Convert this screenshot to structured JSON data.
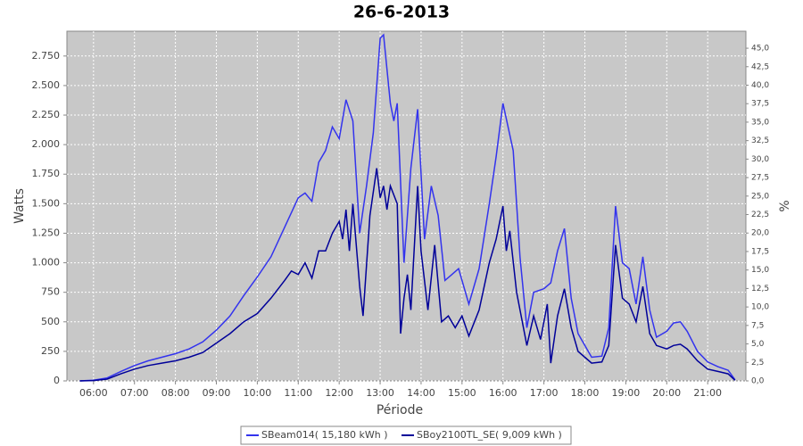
{
  "chart_data": {
    "type": "line",
    "title": "26-6-2013",
    "x_label": "Période",
    "y_label": "Watts",
    "y2_label": "%",
    "xlim": [
      "05:21",
      "21:56"
    ],
    "xticks": [
      "06:00",
      "07:00",
      "08:00",
      "09:00",
      "10:00",
      "11:00",
      "12:00",
      "13:00",
      "14:00",
      "15:00",
      "16:00",
      "17:00",
      "18:00",
      "19:00",
      "20:00",
      "21:00"
    ],
    "ylim": [
      0,
      2960
    ],
    "yticks": [
      0,
      250,
      500,
      750,
      {
        "value": 1000,
        "label": "1.000"
      },
      {
        "value": 1250,
        "label": "1.250"
      },
      {
        "value": 1500,
        "label": "1.500"
      },
      {
        "value": 1750,
        "label": "1.750"
      },
      {
        "value": 2000,
        "label": "2.000"
      },
      {
        "value": 2250,
        "label": "2.250"
      },
      {
        "value": 2500,
        "label": "2.500"
      },
      {
        "value": 2750,
        "label": "2.750"
      }
    ],
    "y2lim": [
      0,
      47.3
    ],
    "y2ticks": [
      {
        "value": 0,
        "label": "0,0"
      },
      {
        "value": 2.5,
        "label": "2,5"
      },
      {
        "value": 5,
        "label": "5,0"
      },
      {
        "value": 7.5,
        "label": "7,5"
      },
      {
        "value": 10,
        "label": "10,0"
      },
      {
        "value": 12.5,
        "label": "12,5"
      },
      {
        "value": 15,
        "label": "15,0"
      },
      {
        "value": 17.5,
        "label": "17,5"
      },
      {
        "value": 20,
        "label": "20,0"
      },
      {
        "value": 22.5,
        "label": "22,5"
      },
      {
        "value": 25,
        "label": "25,0"
      },
      {
        "value": 27.5,
        "label": "27,5"
      },
      {
        "value": 30,
        "label": "30,0"
      },
      {
        "value": 32.5,
        "label": "32,5"
      },
      {
        "value": 35,
        "label": "35,0"
      },
      {
        "value": 37.5,
        "label": "37,5"
      },
      {
        "value": 40,
        "label": "40,0"
      },
      {
        "value": 42.5,
        "label": "42,5"
      },
      {
        "value": 45,
        "label": "45,0"
      }
    ],
    "grid": true,
    "legend": "bottom",
    "series": [
      {
        "name": "SBeam014( 15,180 kWh )",
        "color": "#3333ee",
        "x": [
          "05:40",
          "06:00",
          "06:20",
          "06:40",
          "07:00",
          "07:20",
          "07:40",
          "08:00",
          "08:20",
          "08:40",
          "09:00",
          "09:20",
          "09:40",
          "10:00",
          "10:20",
          "10:40",
          "11:00",
          "11:10",
          "11:20",
          "11:30",
          "11:40",
          "11:50",
          "12:00",
          "12:10",
          "12:20",
          "12:30",
          "12:40",
          "12:50",
          "13:00",
          "13:05",
          "13:15",
          "13:20",
          "13:25",
          "13:35",
          "13:45",
          "13:55",
          "14:05",
          "14:15",
          "14:25",
          "14:35",
          "14:45",
          "14:55",
          "15:10",
          "15:25",
          "15:40",
          "15:50",
          "16:00",
          "16:15",
          "16:25",
          "16:35",
          "16:45",
          "17:00",
          "17:10",
          "17:20",
          "17:30",
          "17:40",
          "17:50",
          "18:00",
          "18:10",
          "18:25",
          "18:35",
          "18:45",
          "18:55",
          "19:05",
          "19:15",
          "19:25",
          "19:35",
          "19:45",
          "20:00",
          "20:10",
          "20:20",
          "20:30",
          "20:45",
          "21:00",
          "21:15",
          "21:30",
          "21:40"
        ],
        "values": [
          0,
          5,
          25,
          80,
          130,
          170,
          200,
          230,
          270,
          330,
          430,
          550,
          720,
          880,
          1050,
          1300,
          1550,
          1590,
          1520,
          1850,
          1950,
          2150,
          2050,
          2380,
          2200,
          1250,
          1650,
          2100,
          2900,
          2930,
          2350,
          2200,
          2350,
          1000,
          1800,
          2300,
          1200,
          1650,
          1400,
          850,
          900,
          950,
          650,
          950,
          1500,
          1900,
          2350,
          1950,
          1050,
          450,
          750,
          780,
          830,
          1100,
          1290,
          700,
          400,
          300,
          200,
          210,
          450,
          1480,
          1000,
          950,
          650,
          1050,
          600,
          370,
          420,
          490,
          500,
          420,
          250,
          160,
          120,
          90,
          10
        ]
      },
      {
        "name": "SBoy2100TL_SE( 9,009 kWh )",
        "color": "#000099",
        "x": [
          "05:40",
          "06:00",
          "06:20",
          "06:40",
          "07:00",
          "07:20",
          "07:40",
          "08:00",
          "08:20",
          "08:40",
          "09:00",
          "09:20",
          "09:40",
          "10:00",
          "10:20",
          "10:40",
          "10:50",
          "11:00",
          "11:10",
          "11:20",
          "11:30",
          "11:40",
          "11:50",
          "12:00",
          "12:05",
          "12:10",
          "12:15",
          "12:20",
          "12:30",
          "12:35",
          "12:45",
          "12:55",
          "13:00",
          "13:05",
          "13:10",
          "13:15",
          "13:25",
          "13:30",
          "13:35",
          "13:40",
          "13:45",
          "13:55",
          "14:00",
          "14:10",
          "14:20",
          "14:30",
          "14:40",
          "14:50",
          "15:00",
          "15:10",
          "15:25",
          "15:40",
          "15:50",
          "16:00",
          "16:05",
          "16:10",
          "16:20",
          "16:35",
          "16:45",
          "16:55",
          "17:05",
          "17:10",
          "17:20",
          "17:30",
          "17:40",
          "17:50",
          "18:00",
          "18:10",
          "18:25",
          "18:35",
          "18:45",
          "18:55",
          "19:05",
          "19:15",
          "19:25",
          "19:35",
          "19:45",
          "20:00",
          "20:10",
          "20:20",
          "20:30",
          "20:45",
          "21:00",
          "21:15",
          "21:30",
          "21:40"
        ],
        "values": [
          0,
          3,
          15,
          60,
          100,
          130,
          150,
          170,
          200,
          240,
          320,
          400,
          500,
          570,
          700,
          850,
          930,
          900,
          1000,
          870,
          1100,
          1100,
          1250,
          1350,
          1200,
          1450,
          1100,
          1500,
          800,
          550,
          1400,
          1800,
          1550,
          1650,
          1450,
          1650,
          1500,
          400,
          700,
          900,
          600,
          1650,
          1100,
          600,
          1150,
          500,
          550,
          450,
          550,
          380,
          600,
          1000,
          1200,
          1480,
          1100,
          1270,
          750,
          300,
          550,
          350,
          650,
          150,
          550,
          780,
          450,
          250,
          200,
          150,
          160,
          300,
          1150,
          700,
          650,
          500,
          800,
          400,
          300,
          270,
          300,
          310,
          270,
          170,
          100,
          80,
          60,
          5
        ]
      }
    ]
  }
}
